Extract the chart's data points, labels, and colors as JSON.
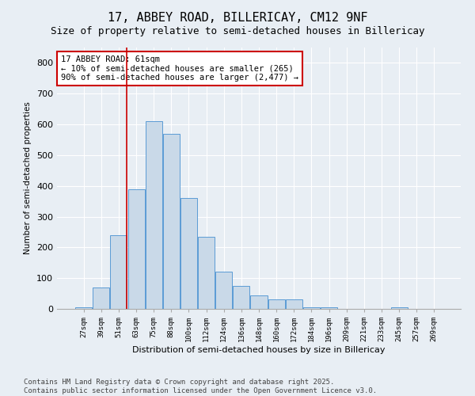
{
  "title": "17, ABBEY ROAD, BILLERICAY, CM12 9NF",
  "subtitle": "Size of property relative to semi-detached houses in Billericay",
  "xlabel": "Distribution of semi-detached houses by size in Billericay",
  "ylabel": "Number of semi-detached properties",
  "bar_labels": [
    "27sqm",
    "39sqm",
    "51sqm",
    "63sqm",
    "75sqm",
    "88sqm",
    "100sqm",
    "112sqm",
    "124sqm",
    "136sqm",
    "148sqm",
    "160sqm",
    "172sqm",
    "184sqm",
    "196sqm",
    "209sqm",
    "221sqm",
    "233sqm",
    "245sqm",
    "257sqm",
    "269sqm"
  ],
  "bar_values": [
    5,
    70,
    240,
    390,
    610,
    570,
    360,
    235,
    120,
    75,
    45,
    30,
    30,
    5,
    5,
    0,
    0,
    0,
    5,
    0,
    0
  ],
  "bar_color": "#c9d9e8",
  "bar_edge_color": "#5b9bd5",
  "vline_x": 2.47,
  "vline_color": "#cc0000",
  "annotation_text": "17 ABBEY ROAD: 61sqm\n← 10% of semi-detached houses are smaller (265)\n90% of semi-detached houses are larger (2,477) →",
  "annotation_box_color": "#cc0000",
  "annotation_text_color": "#000000",
  "ylim": [
    0,
    850
  ],
  "yticks": [
    0,
    100,
    200,
    300,
    400,
    500,
    600,
    700,
    800
  ],
  "bg_color": "#e8eef4",
  "plot_bg_color": "#e8eef4",
  "footer_text": "Contains HM Land Registry data © Crown copyright and database right 2025.\nContains public sector information licensed under the Open Government Licence v3.0.",
  "title_fontsize": 11,
  "subtitle_fontsize": 9,
  "footer_fontsize": 6.5,
  "annotation_fontsize": 7.5
}
